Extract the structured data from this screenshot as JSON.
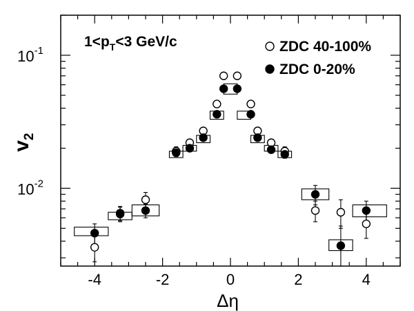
{
  "chart_data": {
    "type": "scatter",
    "xlabel": "Δη",
    "ylabel_main": "v",
    "ylabel_sub": "2",
    "xlim": [
      -5,
      5
    ],
    "ylim": [
      0.0026,
      0.2
    ],
    "yscale": "log",
    "grid": false,
    "legend_position": "top-right",
    "x_ticks": [
      {
        "value": -4,
        "label": "-4"
      },
      {
        "value": -2,
        "label": "-2"
      },
      {
        "value": 0,
        "label": "0"
      },
      {
        "value": 2,
        "label": "2"
      },
      {
        "value": 4,
        "label": "4"
      }
    ],
    "y_ticks": [
      {
        "value": 0.1,
        "base": "10",
        "exp": "-1"
      },
      {
        "value": 0.01,
        "base": "10",
        "exp": "-2"
      }
    ],
    "annotation": {
      "prefix": "1<p",
      "sub": "T",
      "suffix": "<3 GeV/c"
    },
    "series": [
      {
        "name": "ZDC 40-100%",
        "marker": "open-circle",
        "points": [
          {
            "x": -4.0,
            "y": 0.0036,
            "err": 0.0008
          },
          {
            "x": -3.25,
            "y": 0.0065,
            "err": 0.0008
          },
          {
            "x": -2.5,
            "y": 0.0082,
            "err": 0.0011
          },
          {
            "x": -1.6,
            "y": 0.019,
            "err": 0.0015
          },
          {
            "x": -1.2,
            "y": 0.022,
            "err": 0.0012
          },
          {
            "x": -0.8,
            "y": 0.027,
            "err": 0.0012
          },
          {
            "x": -0.4,
            "y": 0.043,
            "err": 0.0015
          },
          {
            "x": -0.2,
            "y": 0.07,
            "err": 0.002
          },
          {
            "x": 0.2,
            "y": 0.07,
            "err": 0.002
          },
          {
            "x": 0.6,
            "y": 0.043,
            "err": 0.0015
          },
          {
            "x": 0.8,
            "y": 0.027,
            "err": 0.0012
          },
          {
            "x": 1.2,
            "y": 0.022,
            "err": 0.0012
          },
          {
            "x": 1.6,
            "y": 0.019,
            "err": 0.0015
          },
          {
            "x": 2.5,
            "y": 0.0068,
            "err": 0.0012
          },
          {
            "x": 3.25,
            "y": 0.0066,
            "err": 0.0016
          },
          {
            "x": 4.0,
            "y": 0.0054,
            "err": 0.0012
          }
        ]
      },
      {
        "name": "ZDC 0-20%",
        "marker": "filled-circle",
        "points": [
          {
            "x": -4.0,
            "y": 0.0046,
            "err": 0.0008
          },
          {
            "x": -3.25,
            "y": 0.0064,
            "err": 0.0008
          },
          {
            "x": -2.5,
            "y": 0.0068,
            "err": 0.0008
          },
          {
            "x": -1.6,
            "y": 0.0185,
            "err": 0.0012
          },
          {
            "x": -1.2,
            "y": 0.02,
            "err": 0.001
          },
          {
            "x": -0.8,
            "y": 0.024,
            "err": 0.001
          },
          {
            "x": -0.4,
            "y": 0.036,
            "err": 0.0012
          },
          {
            "x": -0.2,
            "y": 0.056,
            "err": 0.0015
          },
          {
            "x": 0.2,
            "y": 0.056,
            "err": 0.0015
          },
          {
            "x": 0.6,
            "y": 0.036,
            "err": 0.0012
          },
          {
            "x": 0.8,
            "y": 0.024,
            "err": 0.001
          },
          {
            "x": 1.2,
            "y": 0.0195,
            "err": 0.001
          },
          {
            "x": 1.6,
            "y": 0.018,
            "err": 0.0012
          },
          {
            "x": 2.5,
            "y": 0.009,
            "err": 0.0015
          },
          {
            "x": 3.25,
            "y": 0.0037,
            "err": 0.0015
          },
          {
            "x": 4.0,
            "y": 0.0068,
            "err": 0.0012
          }
        ]
      }
    ],
    "systematic_bands": [
      {
        "x0": -4.6,
        "x1": -3.6,
        "lo": 0.0044,
        "hi": 0.0051
      },
      {
        "x0": -3.6,
        "x1": -2.9,
        "lo": 0.0058,
        "hi": 0.0066
      },
      {
        "x0": -2.9,
        "x1": -2.1,
        "lo": 0.0062,
        "hi": 0.0075
      },
      {
        "x0": -1.8,
        "x1": -1.4,
        "lo": 0.017,
        "hi": 0.019
      },
      {
        "x0": -1.4,
        "x1": -1.0,
        "lo": 0.019,
        "hi": 0.021
      },
      {
        "x0": -1.0,
        "x1": -0.6,
        "lo": 0.022,
        "hi": 0.025
      },
      {
        "x0": -0.6,
        "x1": -0.2,
        "lo": 0.033,
        "hi": 0.038
      },
      {
        "x0": -0.2,
        "x1": 0.2,
        "lo": 0.051,
        "hi": 0.061
      },
      {
        "x0": 0.2,
        "x1": 0.6,
        "lo": 0.033,
        "hi": 0.038
      },
      {
        "x0": 0.6,
        "x1": 1.0,
        "lo": 0.022,
        "hi": 0.025
      },
      {
        "x0": 1.0,
        "x1": 1.4,
        "lo": 0.019,
        "hi": 0.021
      },
      {
        "x0": 1.4,
        "x1": 1.8,
        "lo": 0.017,
        "hi": 0.019
      },
      {
        "x0": 2.1,
        "x1": 2.9,
        "lo": 0.0082,
        "hi": 0.0099
      },
      {
        "x0": 2.9,
        "x1": 3.6,
        "lo": 0.0034,
        "hi": 0.0041
      },
      {
        "x0": 3.6,
        "x1": 4.6,
        "lo": 0.0061,
        "hi": 0.0075
      }
    ]
  }
}
